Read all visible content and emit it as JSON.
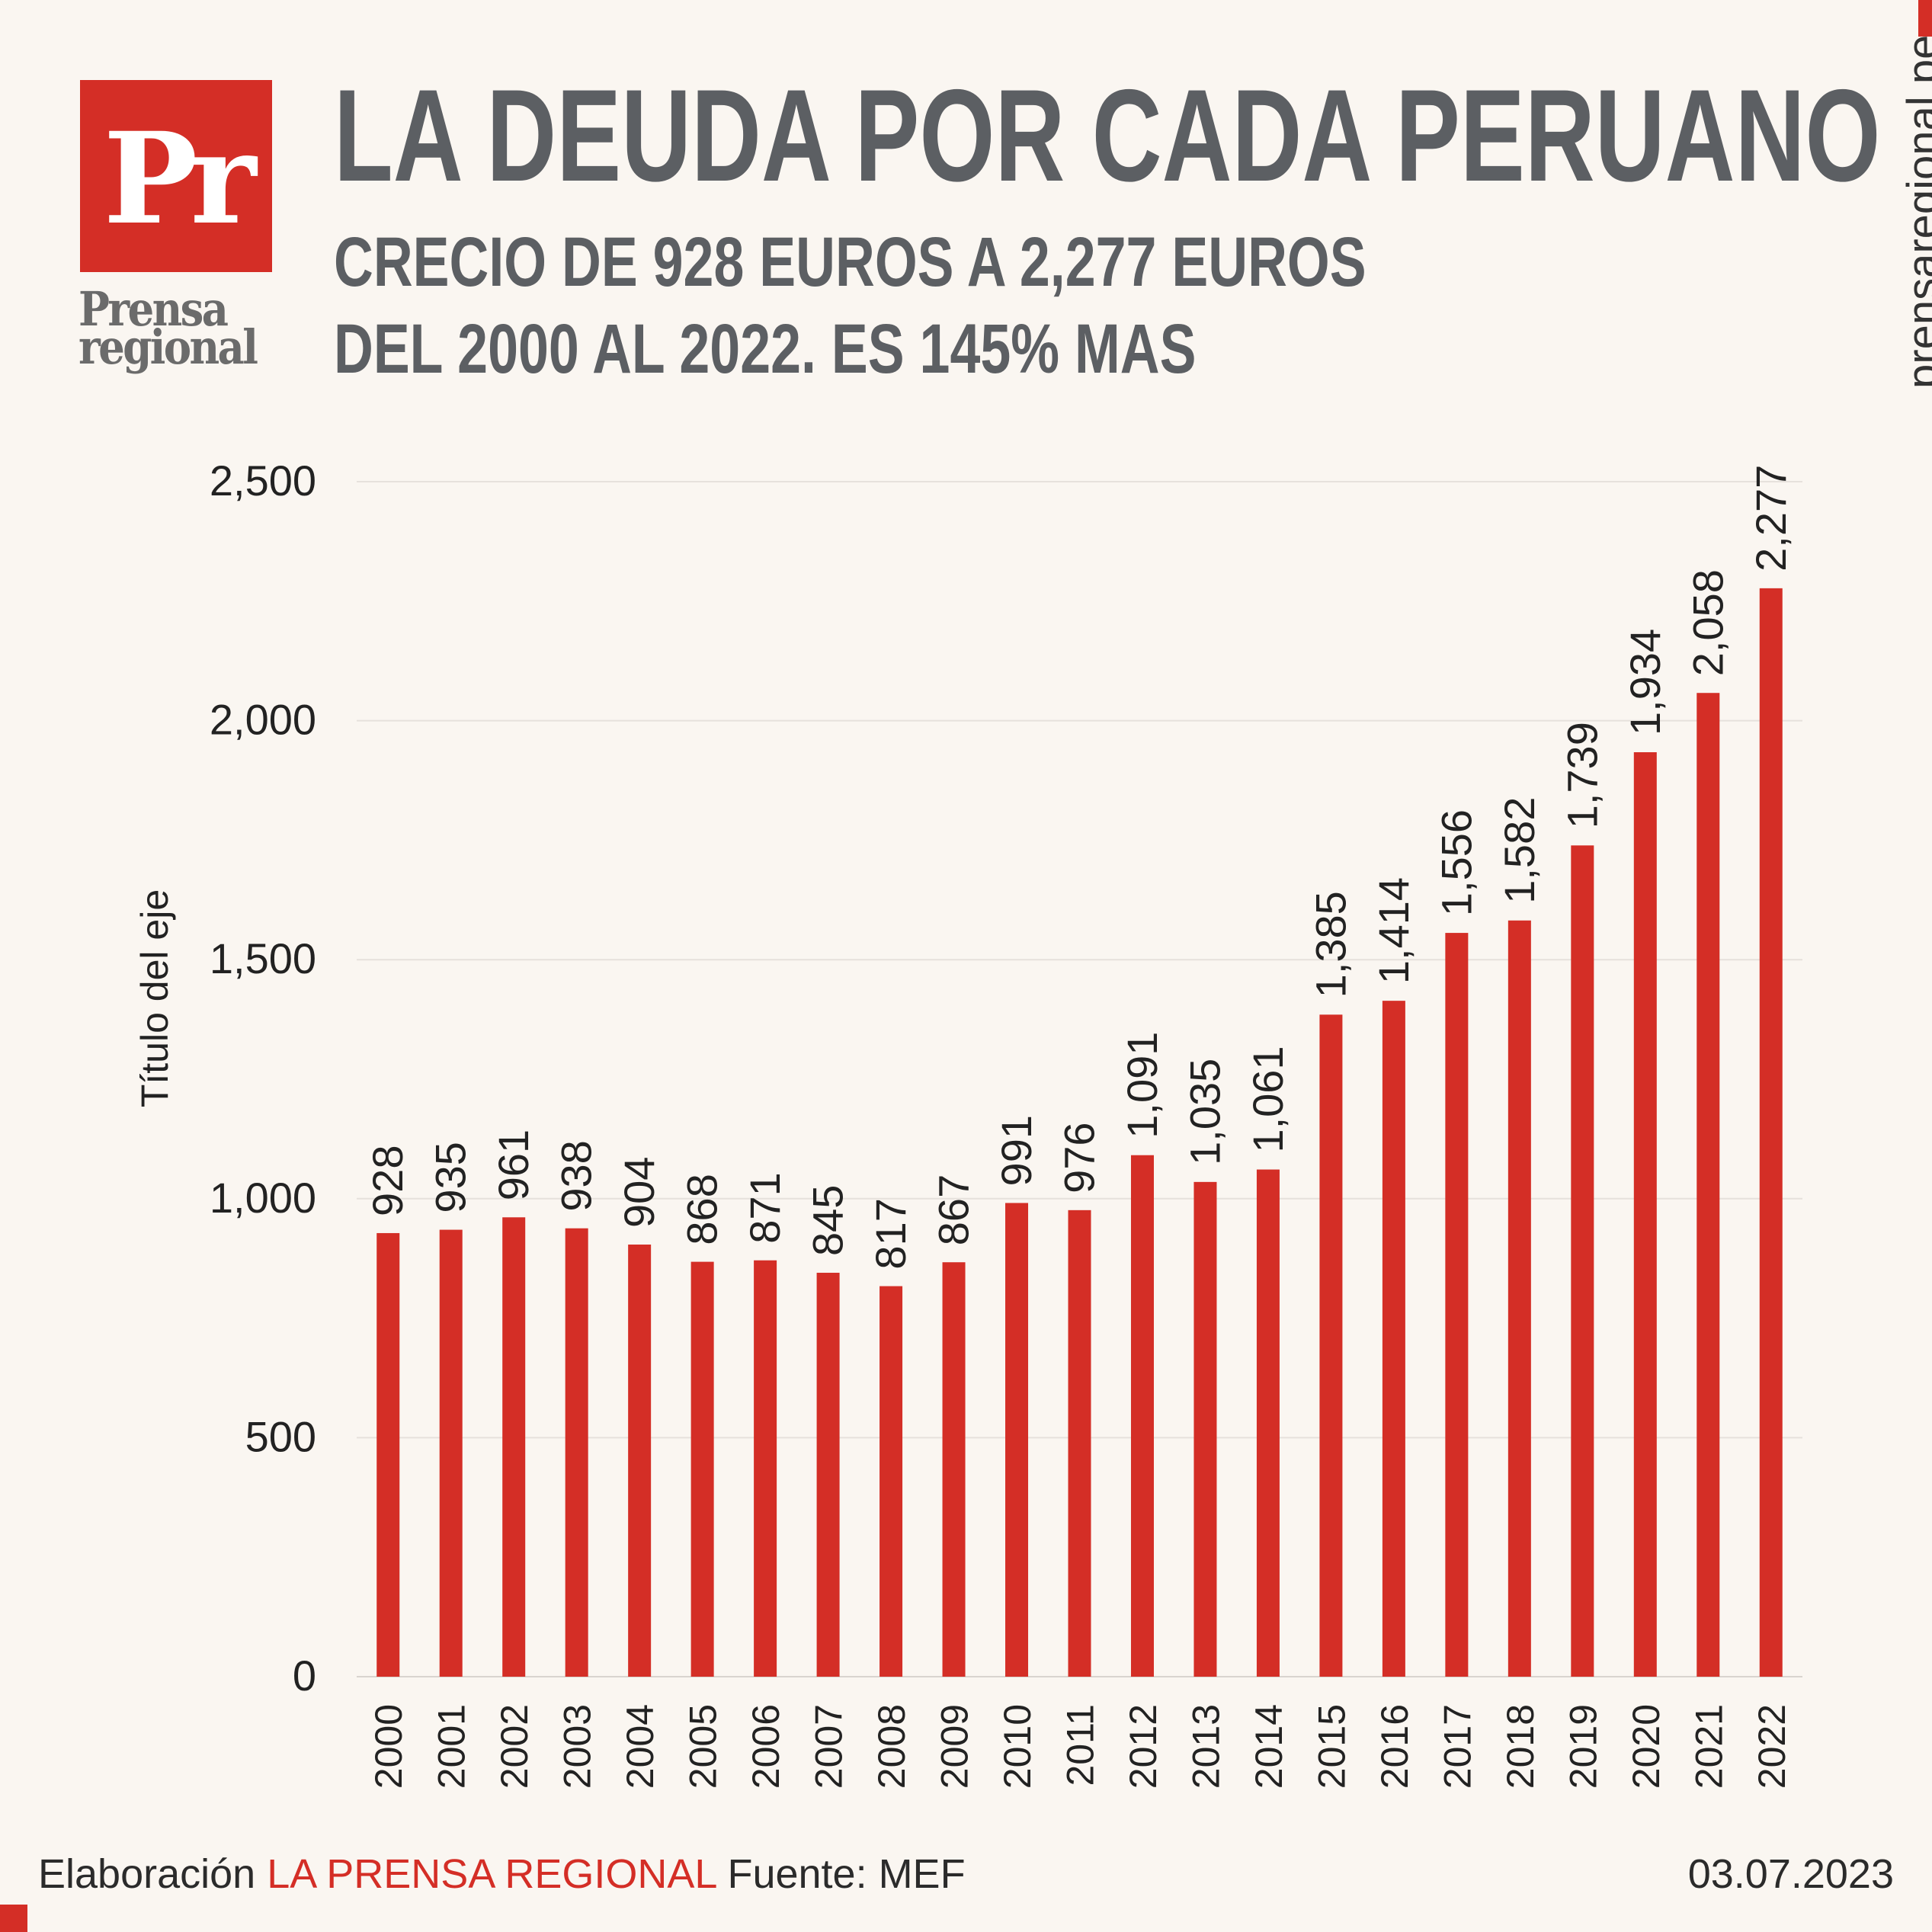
{
  "header": {
    "logo_mark": "Pr",
    "logo_word_1": "Prensa",
    "logo_word_2": "regional",
    "title": "LA DEUDA POR CADA PERUANO",
    "subtitle_line_1": "CRECIO DE 928 EUROS A 2,277 EUROS",
    "subtitle_line_2": "DEL 2000 AL 2022. ES 145% MAS",
    "site_url": "prensaregional.pe"
  },
  "footer": {
    "prefix": "Elaboración",
    "brand": "LA PRENSA REGIONAL",
    "source": "Fuente: MEF",
    "date": "03.07.2023"
  },
  "colors": {
    "bar": "#d42e26",
    "accent": "#d42e26",
    "title": "#5c5f63",
    "background": "#faf6f1",
    "gridline": "#e6e1dc"
  },
  "chart_data": {
    "type": "bar",
    "title": "",
    "xlabel": "",
    "ylabel": "Título del eje",
    "categories": [
      "2000",
      "2001",
      "2002",
      "2003",
      "2004",
      "2005",
      "2006",
      "2007",
      "2008",
      "2009",
      "2010",
      "2011",
      "2012",
      "2013",
      "2014",
      "2015",
      "2016",
      "2017",
      "2018",
      "2019",
      "2020",
      "2021",
      "2022"
    ],
    "values": [
      928,
      935,
      961,
      938,
      904,
      868,
      871,
      845,
      817,
      867,
      991,
      976,
      1091,
      1035,
      1061,
      1385,
      1414,
      1556,
      1582,
      1739,
      1934,
      2058,
      2277
    ],
    "data_labels": [
      "928",
      "935",
      "961",
      "938",
      "904",
      "868",
      "871",
      "845",
      "817",
      "867",
      "991",
      "976",
      "1,091",
      "1,035",
      "1,061",
      "1,385",
      "1,414",
      "1,556",
      "1,582",
      "1,739",
      "1,934",
      "2,058",
      "2,277"
    ],
    "ylim": [
      0,
      2500
    ],
    "yticks": [
      0,
      500,
      1000,
      1500,
      2000,
      2500
    ],
    "ytick_labels": [
      "0",
      "500",
      "1,000",
      "1,500",
      "2,000",
      "2,500"
    ],
    "grid": true,
    "legend": "none"
  }
}
